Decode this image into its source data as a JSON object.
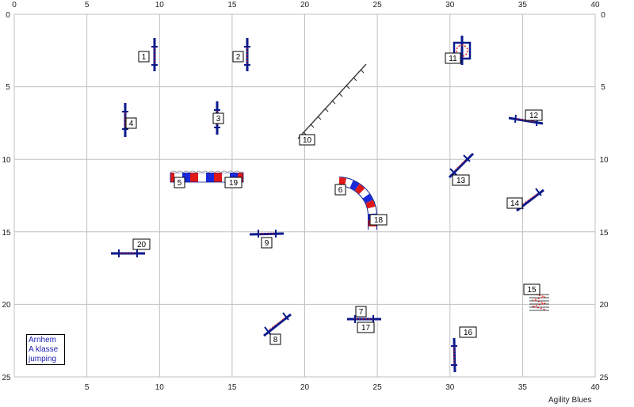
{
  "course": {
    "axis": {
      "x_ticks": [
        "0",
        "5",
        "10",
        "15",
        "20",
        "25",
        "30",
        "35",
        "40"
      ],
      "y_ticks": [
        "0",
        "5",
        "10",
        "15",
        "20",
        "25"
      ]
    },
    "info": {
      "place": "Arnhem",
      "class": "A klasse",
      "type": "jumping"
    },
    "brand": "Agility Blues",
    "colors": {
      "bar": "#0a1a8c",
      "red": "#e01818",
      "blue": "#1a2ad8",
      "grid": "#c0c0c0"
    },
    "obstacles": [
      {
        "label": "1",
        "kind": "jump"
      },
      {
        "label": "2",
        "kind": "jump"
      },
      {
        "label": "3",
        "kind": "jump"
      },
      {
        "label": "4",
        "kind": "jump"
      },
      {
        "label": "5",
        "kind": "tunnel-start"
      },
      {
        "label": "6",
        "kind": "tunnel-curved"
      },
      {
        "label": "7",
        "kind": "jump"
      },
      {
        "label": "8",
        "kind": "jump"
      },
      {
        "label": "9",
        "kind": "jump"
      },
      {
        "label": "10",
        "kind": "dogwalk"
      },
      {
        "label": "11",
        "kind": "tyre"
      },
      {
        "label": "12",
        "kind": "jump"
      },
      {
        "label": "13",
        "kind": "jump"
      },
      {
        "label": "14",
        "kind": "jump"
      },
      {
        "label": "15",
        "kind": "weave"
      },
      {
        "label": "16",
        "kind": "jump"
      },
      {
        "label": "17",
        "kind": "jump"
      },
      {
        "label": "18",
        "kind": "tunnel-end"
      },
      {
        "label": "19",
        "kind": "tunnel-end"
      },
      {
        "label": "20",
        "kind": "jump"
      }
    ]
  }
}
